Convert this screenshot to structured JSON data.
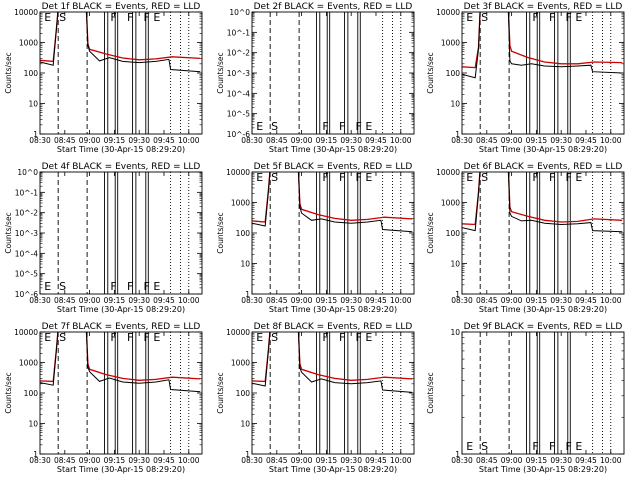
{
  "figure": {
    "background": "#ffffff",
    "events_color": "#000000",
    "lld_color": "#cc0000"
  },
  "chart_data": [
    {
      "type": "line",
      "title": "Det 1f BLACK = Events, RED = LLD",
      "ylabel": "Counts/sec",
      "xlabel": "Start Time (30-Apr-15 08:29:20)",
      "x_ticks": [
        "08:30",
        "08:45",
        "09:00",
        "09:15",
        "09:30",
        "09:45",
        "10:00"
      ],
      "y_scale": "log",
      "y_ticks": [
        "1",
        "10",
        "100",
        "1000",
        "10000"
      ],
      "flags": [
        "E",
        "S",
        "F",
        "F",
        "F",
        "E"
      ],
      "events_series": [
        [
          "08:30",
          230
        ],
        [
          "08:38",
          180
        ],
        [
          "08:40",
          3000
        ],
        [
          "08:41",
          15000
        ],
        [
          "08:44",
          15000
        ],
        [
          "08:58",
          15000
        ],
        [
          "08:59",
          800
        ],
        [
          "09:00",
          520
        ],
        [
          "09:06",
          250
        ],
        [
          "09:12",
          320
        ],
        [
          "09:20",
          240
        ],
        [
          "09:30",
          220
        ],
        [
          "09:40",
          240
        ],
        [
          "09:48",
          280
        ],
        [
          "09:49",
          130
        ],
        [
          "10:07",
          110
        ]
      ],
      "lld_series": [
        [
          "08:30",
          260
        ],
        [
          "08:38",
          240
        ],
        [
          "08:40",
          3000
        ],
        [
          "08:41",
          15000
        ],
        [
          "08:44",
          15000
        ],
        [
          "08:58",
          15000
        ],
        [
          "08:59",
          900
        ],
        [
          "09:00",
          600
        ],
        [
          "09:10",
          420
        ],
        [
          "09:20",
          310
        ],
        [
          "09:30",
          270
        ],
        [
          "09:40",
          290
        ],
        [
          "09:50",
          340
        ],
        [
          "10:07",
          300
        ]
      ]
    },
    {
      "type": "line",
      "title": "Det 2f BLACK = Events, RED = LLD",
      "ylabel": "Counts/sec",
      "xlabel": "Start Time (30-Apr-15 08:29:20)",
      "x_ticks": [
        "08:30",
        "08:45",
        "09:00",
        "09:15",
        "09:30",
        "09:45",
        "10:00"
      ],
      "y_scale": "log",
      "y_ticks": [
        "10^-6",
        "10^-5",
        "10^-4",
        "10^-3",
        "10^-2",
        "10^-1",
        "10^0"
      ],
      "flags": [
        "E",
        "S",
        "F",
        "F",
        "F",
        "E"
      ],
      "events_series": [],
      "lld_series": []
    },
    {
      "type": "line",
      "title": "Det 3f BLACK = Events, RED = LLD",
      "ylabel": "Counts/sec",
      "xlabel": "Start Time (30-Apr-15 08:29:20)",
      "x_ticks": [
        "08:30",
        "08:45",
        "09:00",
        "09:15",
        "09:30",
        "09:45",
        "10:00"
      ],
      "y_scale": "log",
      "y_ticks": [
        "1",
        "10",
        "100",
        "1000",
        "10000"
      ],
      "flags": [
        "E",
        "S",
        "F",
        "F",
        "F",
        "E"
      ],
      "events_series": [
        [
          "08:30",
          90
        ],
        [
          "08:38",
          70
        ],
        [
          "08:40",
          600
        ],
        [
          "08:41",
          15000
        ],
        [
          "08:44",
          15000
        ],
        [
          "08:58",
          15000
        ],
        [
          "08:59",
          250
        ],
        [
          "09:00",
          200
        ],
        [
          "09:06",
          180
        ],
        [
          "09:12",
          200
        ],
        [
          "09:20",
          170
        ],
        [
          "09:30",
          160
        ],
        [
          "09:40",
          170
        ],
        [
          "09:48",
          180
        ],
        [
          "09:49",
          110
        ],
        [
          "10:07",
          100
        ]
      ],
      "lld_series": [
        [
          "08:30",
          160
        ],
        [
          "08:38",
          150
        ],
        [
          "08:40",
          700
        ],
        [
          "08:41",
          15000
        ],
        [
          "08:44",
          15000
        ],
        [
          "08:58",
          15000
        ],
        [
          "08:59",
          800
        ],
        [
          "09:00",
          520
        ],
        [
          "09:10",
          320
        ],
        [
          "09:20",
          230
        ],
        [
          "09:30",
          200
        ],
        [
          "09:40",
          200
        ],
        [
          "09:50",
          230
        ],
        [
          "10:07",
          220
        ]
      ]
    },
    {
      "type": "line",
      "title": "Det 4f BLACK = Events, RED = LLD",
      "ylabel": "Counts/sec",
      "xlabel": "Start Time (30-Apr-15 08:29:20)",
      "x_ticks": [
        "08:30",
        "08:45",
        "09:00",
        "09:15",
        "09:30",
        "09:45",
        "10:00"
      ],
      "y_scale": "log",
      "y_ticks": [
        "10^-6",
        "10^-5",
        "10^-4",
        "10^-3",
        "10^-2",
        "10^-1",
        "10^0"
      ],
      "flags": [
        "E",
        "S",
        "F",
        "F",
        "F",
        "E"
      ],
      "events_series": [],
      "lld_series": []
    },
    {
      "type": "line",
      "title": "Det 5f BLACK = Events, RED = LLD",
      "ylabel": "Counts/sec",
      "xlabel": "Start Time (30-Apr-15 08:29:20)",
      "x_ticks": [
        "08:30",
        "08:45",
        "09:00",
        "09:15",
        "09:30",
        "09:45",
        "10:00"
      ],
      "y_scale": "log",
      "y_ticks": [
        "1",
        "10",
        "100",
        "1000",
        "10000"
      ],
      "flags": [
        "E",
        "S",
        "F",
        "F",
        "F",
        "E"
      ],
      "events_series": [
        [
          "08:30",
          210
        ],
        [
          "08:38",
          170
        ],
        [
          "08:40",
          2500
        ],
        [
          "08:41",
          15000
        ],
        [
          "08:44",
          15000
        ],
        [
          "08:58",
          15000
        ],
        [
          "08:59",
          700
        ],
        [
          "09:00",
          450
        ],
        [
          "09:06",
          260
        ],
        [
          "09:12",
          290
        ],
        [
          "09:20",
          230
        ],
        [
          "09:30",
          210
        ],
        [
          "09:40",
          230
        ],
        [
          "09:48",
          260
        ],
        [
          "09:49",
          130
        ],
        [
          "10:07",
          110
        ]
      ],
      "lld_series": [
        [
          "08:30",
          250
        ],
        [
          "08:38",
          230
        ],
        [
          "08:40",
          2800
        ],
        [
          "08:41",
          15000
        ],
        [
          "08:44",
          15000
        ],
        [
          "08:58",
          15000
        ],
        [
          "08:59",
          900
        ],
        [
          "09:00",
          600
        ],
        [
          "09:10",
          400
        ],
        [
          "09:20",
          300
        ],
        [
          "09:30",
          260
        ],
        [
          "09:40",
          280
        ],
        [
          "09:50",
          330
        ],
        [
          "10:07",
          290
        ]
      ]
    },
    {
      "type": "line",
      "title": "Det 6f BLACK = Events, RED = LLD",
      "ylabel": "Counts/sec",
      "xlabel": "Start Time (30-Apr-15 08:29:20)",
      "x_ticks": [
        "08:30",
        "08:45",
        "09:00",
        "09:15",
        "09:30",
        "09:45",
        "10:00"
      ],
      "y_scale": "log",
      "y_ticks": [
        "1",
        "10",
        "100",
        "1000",
        "10000"
      ],
      "flags": [
        "E",
        "S",
        "F",
        "F",
        "F",
        "E"
      ],
      "events_series": [
        [
          "08:30",
          150
        ],
        [
          "08:38",
          120
        ],
        [
          "08:40",
          2000
        ],
        [
          "08:41",
          15000
        ],
        [
          "08:44",
          15000
        ],
        [
          "08:58",
          15000
        ],
        [
          "08:59",
          450
        ],
        [
          "09:00",
          350
        ],
        [
          "09:06",
          250
        ],
        [
          "09:12",
          260
        ],
        [
          "09:20",
          210
        ],
        [
          "09:30",
          190
        ],
        [
          "09:40",
          200
        ],
        [
          "09:48",
          220
        ],
        [
          "09:49",
          120
        ],
        [
          "10:07",
          110
        ]
      ],
      "lld_series": [
        [
          "08:30",
          200
        ],
        [
          "08:38",
          190
        ],
        [
          "08:40",
          2200
        ],
        [
          "08:41",
          15000
        ],
        [
          "08:44",
          15000
        ],
        [
          "08:58",
          15000
        ],
        [
          "08:59",
          700
        ],
        [
          "09:00",
          500
        ],
        [
          "09:10",
          350
        ],
        [
          "09:20",
          260
        ],
        [
          "09:30",
          230
        ],
        [
          "09:40",
          240
        ],
        [
          "09:50",
          290
        ],
        [
          "10:07",
          260
        ]
      ]
    },
    {
      "type": "line",
      "title": "Det 7f BLACK = Events, RED = LLD",
      "ylabel": "Counts/sec",
      "xlabel": "Start Time (30-Apr-15 08:29:20)",
      "x_ticks": [
        "08:30",
        "08:45",
        "09:00",
        "09:15",
        "09:30",
        "09:45",
        "10:00"
      ],
      "y_scale": "log",
      "y_ticks": [
        "1",
        "10",
        "100",
        "1000",
        "10000"
      ],
      "flags": [
        "E",
        "S",
        "F",
        "F",
        "F",
        "E"
      ],
      "events_series": [
        [
          "08:30",
          220
        ],
        [
          "08:38",
          180
        ],
        [
          "08:40",
          2800
        ],
        [
          "08:41",
          15000
        ],
        [
          "08:44",
          15000
        ],
        [
          "08:58",
          15000
        ],
        [
          "08:59",
          700
        ],
        [
          "09:00",
          500
        ],
        [
          "09:06",
          240
        ],
        [
          "09:12",
          310
        ],
        [
          "09:20",
          230
        ],
        [
          "09:30",
          210
        ],
        [
          "09:40",
          230
        ],
        [
          "09:48",
          270
        ],
        [
          "09:49",
          130
        ],
        [
          "10:07",
          110
        ]
      ],
      "lld_series": [
        [
          "08:30",
          250
        ],
        [
          "08:38",
          240
        ],
        [
          "08:40",
          3000
        ],
        [
          "08:41",
          15000
        ],
        [
          "08:44",
          15000
        ],
        [
          "08:58",
          15000
        ],
        [
          "08:59",
          900
        ],
        [
          "09:00",
          600
        ],
        [
          "09:10",
          400
        ],
        [
          "09:20",
          300
        ],
        [
          "09:30",
          260
        ],
        [
          "09:40",
          280
        ],
        [
          "09:50",
          330
        ],
        [
          "10:07",
          290
        ]
      ]
    },
    {
      "type": "line",
      "title": "Det 8f BLACK = Events, RED = LLD",
      "ylabel": "Counts/sec",
      "xlabel": "Start Time (30-Apr-15 08:29:20)",
      "x_ticks": [
        "08:30",
        "08:45",
        "09:00",
        "09:15",
        "09:30",
        "09:45",
        "10:00"
      ],
      "y_scale": "log",
      "y_ticks": [
        "1",
        "10",
        "100",
        "1000",
        "10000"
      ],
      "flags": [
        "E",
        "S",
        "F",
        "F",
        "F",
        "E"
      ],
      "events_series": [
        [
          "08:30",
          210
        ],
        [
          "08:38",
          170
        ],
        [
          "08:40",
          2600
        ],
        [
          "08:41",
          15000
        ],
        [
          "08:44",
          15000
        ],
        [
          "08:58",
          15000
        ],
        [
          "08:59",
          650
        ],
        [
          "09:00",
          480
        ],
        [
          "09:06",
          230
        ],
        [
          "09:12",
          290
        ],
        [
          "09:20",
          220
        ],
        [
          "09:30",
          200
        ],
        [
          "09:40",
          220
        ],
        [
          "09:48",
          250
        ],
        [
          "09:49",
          125
        ],
        [
          "10:07",
          105
        ]
      ],
      "lld_series": [
        [
          "08:30",
          250
        ],
        [
          "08:38",
          240
        ],
        [
          "08:40",
          2900
        ],
        [
          "08:41",
          15000
        ],
        [
          "08:44",
          15000
        ],
        [
          "08:58",
          15000
        ],
        [
          "08:59",
          900
        ],
        [
          "09:00",
          600
        ],
        [
          "09:10",
          400
        ],
        [
          "09:20",
          300
        ],
        [
          "09:30",
          260
        ],
        [
          "09:40",
          280
        ],
        [
          "09:50",
          330
        ],
        [
          "10:07",
          290
        ]
      ]
    },
    {
      "type": "line",
      "title": "Det 9f BLACK = Events, RED = LLD",
      "ylabel": "Counts/sec",
      "xlabel": "Start Time (30-Apr-15 08:29:20)",
      "x_ticks": [
        "08:30",
        "08:45",
        "09:00",
        "09:15",
        "09:30",
        "09:45",
        "10:00"
      ],
      "y_scale": "log",
      "y_ticks": [
        "1",
        "10"
      ],
      "flags": [
        "E",
        "S",
        "F",
        "F",
        "F",
        "E"
      ],
      "events_series": [],
      "lld_series": []
    }
  ]
}
